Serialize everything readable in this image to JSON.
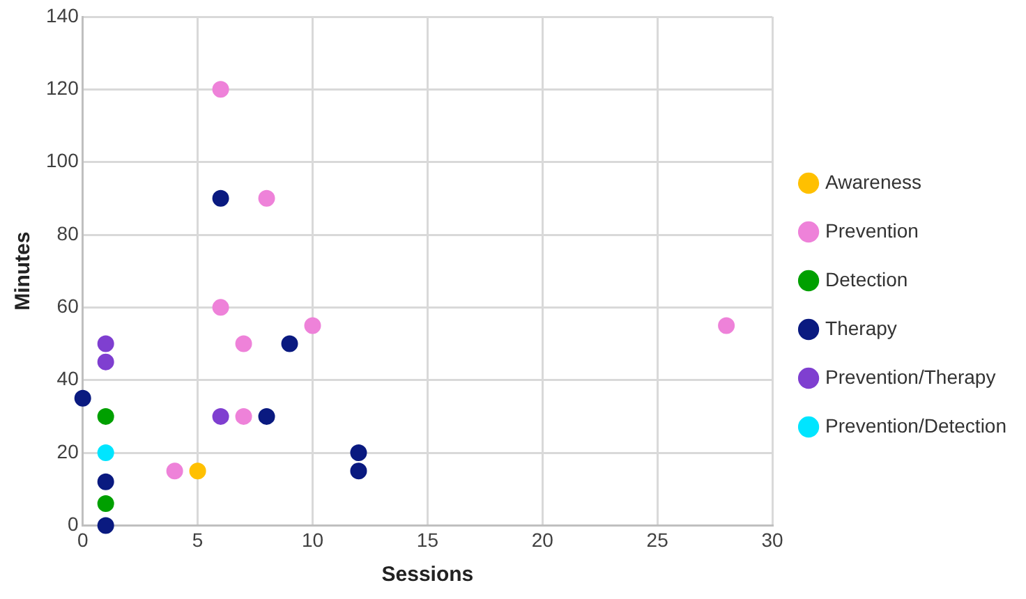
{
  "chart_data": {
    "type": "scatter",
    "xlabel": "Sessions",
    "ylabel": "Minutes",
    "xlim": [
      0,
      30
    ],
    "xticks": [
      0,
      5,
      10,
      15,
      20,
      25,
      30
    ],
    "ylim": [
      0,
      140
    ],
    "yticks": [
      0,
      20,
      40,
      60,
      80,
      100,
      120,
      140
    ],
    "grid": true,
    "legend": "right",
    "marker": "circle",
    "series": [
      {
        "name": "Awareness",
        "color": "#ffc000",
        "x": [
          5
        ],
        "values": [
          15
        ]
      },
      {
        "name": "Prevention",
        "color": "#ee82d9",
        "x": [
          6,
          8,
          6,
          7,
          10,
          7,
          4,
          28
        ],
        "values": [
          120,
          90,
          60,
          50,
          55,
          30,
          15,
          55
        ]
      },
      {
        "name": "Detection",
        "color": "#00a000",
        "x": [
          1,
          1
        ],
        "values": [
          30,
          6
        ]
      },
      {
        "name": "Therapy",
        "color": "#0a1a80",
        "x": [
          6,
          9,
          0,
          8,
          12,
          12,
          1,
          1
        ],
        "values": [
          90,
          50,
          35,
          30,
          20,
          15,
          12,
          0
        ]
      },
      {
        "name": "Prevention/Therapy",
        "color": "#7f3fd0",
        "x": [
          1,
          1,
          6
        ],
        "values": [
          50,
          45,
          30
        ]
      },
      {
        "name": "Prevention/Detection",
        "color": "#00e5ff",
        "x": [
          1
        ],
        "values": [
          20
        ]
      }
    ]
  }
}
